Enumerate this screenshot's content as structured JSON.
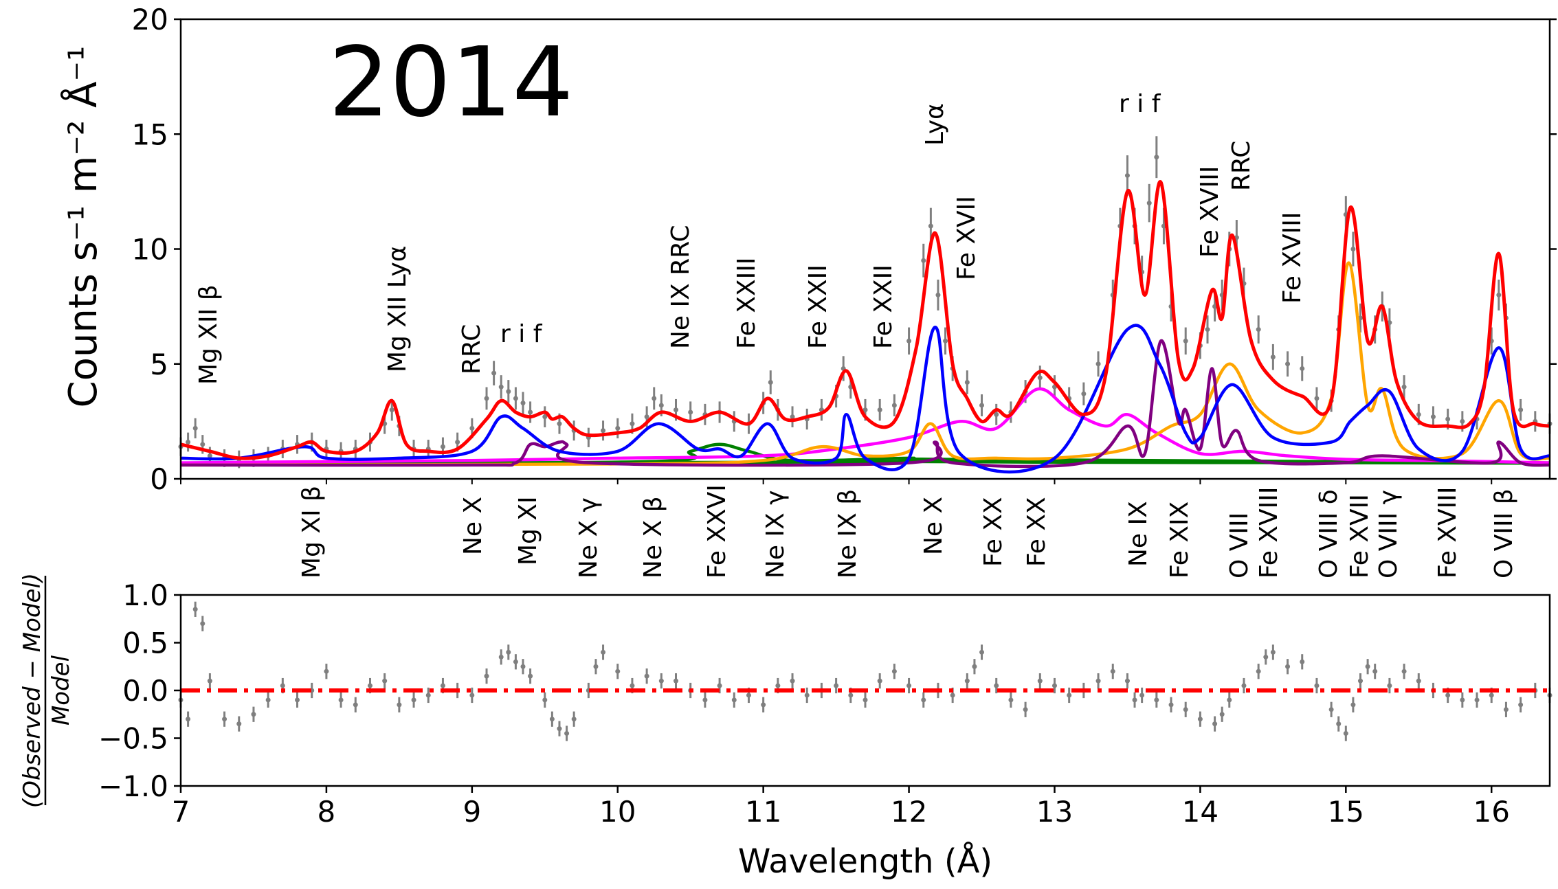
{
  "chart_data": [
    {
      "type": "line",
      "panel": "spectrum",
      "year_label": "2014",
      "ylabel": "Counts s⁻¹ m⁻² Å⁻¹",
      "xlim": [
        7.0,
        16.4
      ],
      "ylim": [
        0,
        20
      ],
      "yticks": [
        "0",
        "5",
        "10",
        "15",
        "20"
      ],
      "top_labels": [
        "Mg XII β",
        "Mg XII Lyα",
        "RRC",
        "r i f",
        "Ne IX RRC",
        "Fe XXIII",
        "Fe XXII",
        "Fe XXII",
        "Lyα",
        "Fe XVII",
        "r i f",
        "Fe XVIII",
        "RRC",
        "Fe XVIII"
      ],
      "bottom_labels": [
        "Mg XI β",
        "Ne X",
        "Mg XI",
        "Ne X γ",
        "Ne X β",
        "Fe XXVI",
        "Ne IX γ",
        "Ne IX β",
        "Ne X",
        "Fe XX",
        "Fe XX",
        "Ne IX",
        "Fe XIX",
        "O VIII",
        "Fe XVIII",
        "O VIII δ",
        "Fe XVII",
        "O VIII γ",
        "Fe XVIII",
        "O VIII β"
      ],
      "colors": {
        "data": "#7f7f7f",
        "total": "#ff0000",
        "blue": "#0000ff",
        "magenta": "#ff00ff",
        "orange": "#ffa500",
        "purple": "#800080",
        "green": "#008000"
      },
      "continuum": {
        "x": [
          7.0,
          9.0,
          11.0,
          12.0,
          13.0,
          15.0,
          16.4
        ],
        "y": [
          0.65,
          0.7,
          0.72,
          0.75,
          0.72,
          0.7,
          0.68
        ]
      },
      "green_component": {
        "x": [
          7.0,
          10.2,
          10.5,
          10.7,
          10.9,
          11.2,
          12.0,
          12.3,
          16.4
        ],
        "y": [
          0.65,
          0.75,
          1.2,
          1.5,
          1.2,
          0.8,
          0.9,
          0.85,
          0.7
        ]
      },
      "magenta_component": {
        "x": [
          7.0,
          8.0,
          9.0,
          9.5,
          10.0,
          11.0,
          11.5,
          12.0,
          12.35,
          12.6,
          12.88,
          13.1,
          13.35,
          13.5,
          13.7,
          14.0,
          14.3,
          14.6,
          15.0,
          15.5,
          16.0,
          16.4
        ],
        "y": [
          0.7,
          0.75,
          0.8,
          0.85,
          0.9,
          1.0,
          1.3,
          1.8,
          2.5,
          2.2,
          3.9,
          3.0,
          2.3,
          2.8,
          2.0,
          1.1,
          1.2,
          1.0,
          0.85,
          0.8,
          0.75,
          0.7
        ]
      },
      "orange_component": {
        "x": [
          7.0,
          10.0,
          11.0,
          11.4,
          11.7,
          12.0,
          12.15,
          12.3,
          12.6,
          13.0,
          13.5,
          13.8,
          14.0,
          14.2,
          14.4,
          14.7,
          14.9,
          15.02,
          15.15,
          15.25,
          15.4,
          15.8,
          16.05,
          16.2,
          16.4
        ],
        "y": [
          0.6,
          0.65,
          0.8,
          1.4,
          1.0,
          1.2,
          2.4,
          1.0,
          0.9,
          0.9,
          1.3,
          2.3,
          2.8,
          5.0,
          3.0,
          2.0,
          3.5,
          9.4,
          3.2,
          3.9,
          1.3,
          1.1,
          3.4,
          1.1,
          0.9
        ]
      },
      "blue_component": {
        "x": [
          7.0,
          7.4,
          7.85,
          8.0,
          8.5,
          9.0,
          9.2,
          9.35,
          9.6,
          10.0,
          10.28,
          10.55,
          10.7,
          10.85,
          11.03,
          11.2,
          11.5,
          11.57,
          11.7,
          12.0,
          12.18,
          12.35,
          13.0,
          13.5,
          13.72,
          13.9,
          14.0,
          14.22,
          14.5,
          14.9,
          15.03,
          15.15,
          15.3,
          15.5,
          15.8,
          16.05,
          16.2,
          16.4
        ],
        "y": [
          0.9,
          0.9,
          1.4,
          0.9,
          0.9,
          1.2,
          2.7,
          2.2,
          1.2,
          1.2,
          2.4,
          1.3,
          1.3,
          1.0,
          2.4,
          0.9,
          0.9,
          2.8,
          0.9,
          0.9,
          6.6,
          1.1,
          0.9,
          6.5,
          5.0,
          2.0,
          1.8,
          4.1,
          1.8,
          1.6,
          2.5,
          3.2,
          3.8,
          1.3,
          1.2,
          5.7,
          1.3,
          1.0
        ]
      },
      "purple_component": {
        "x": [
          7.0,
          9.0,
          9.3,
          9.4,
          9.5,
          9.6,
          9.65,
          9.8,
          12.0,
          12.18,
          12.3,
          13.2,
          13.5,
          13.62,
          13.73,
          13.85,
          13.9,
          14.0,
          14.08,
          14.15,
          14.25,
          14.4,
          15.0,
          15.25,
          16.0,
          16.05,
          16.2,
          16.4
        ],
        "y": [
          0.6,
          0.6,
          0.7,
          1.5,
          1.4,
          1.6,
          1.5,
          0.7,
          0.7,
          1.6,
          0.7,
          0.7,
          2.3,
          1.1,
          6.0,
          2.5,
          3.0,
          1.3,
          4.8,
          1.5,
          2.1,
          0.8,
          0.7,
          1.0,
          0.7,
          1.6,
          0.7,
          0.6
        ]
      },
      "total_model": {
        "x": [
          7.0,
          7.2,
          7.4,
          7.6,
          7.8,
          7.9,
          8.0,
          8.2,
          8.35,
          8.45,
          8.55,
          8.7,
          8.9,
          9.1,
          9.2,
          9.3,
          9.4,
          9.5,
          9.55,
          9.62,
          9.7,
          9.8,
          10.0,
          10.15,
          10.3,
          10.5,
          10.7,
          10.9,
          11.03,
          11.15,
          11.3,
          11.45,
          11.57,
          11.7,
          11.9,
          12.05,
          12.18,
          12.3,
          12.4,
          12.5,
          12.6,
          12.7,
          12.88,
          13.0,
          13.2,
          13.35,
          13.5,
          13.62,
          13.73,
          13.85,
          13.95,
          14.08,
          14.15,
          14.22,
          14.35,
          14.5,
          14.7,
          14.9,
          15.03,
          15.15,
          15.25,
          15.35,
          15.5,
          15.7,
          15.85,
          15.95,
          16.05,
          16.15,
          16.3,
          16.4
        ],
        "y": [
          1.5,
          1.2,
          0.9,
          1.0,
          1.4,
          1.6,
          1.2,
          1.2,
          2.0,
          3.4,
          1.5,
          1.2,
          1.3,
          2.6,
          3.4,
          2.9,
          2.7,
          2.9,
          2.6,
          2.7,
          2.2,
          1.9,
          2.0,
          2.2,
          2.9,
          2.5,
          2.9,
          2.4,
          3.5,
          2.6,
          2.7,
          3.1,
          4.7,
          2.7,
          2.5,
          5.7,
          10.7,
          5.0,
          3.5,
          2.5,
          3.0,
          2.8,
          4.6,
          4.2,
          2.8,
          4.5,
          12.5,
          8.0,
          12.9,
          5.2,
          4.8,
          8.2,
          7.0,
          10.6,
          6.0,
          4.3,
          3.6,
          3.4,
          11.8,
          6.0,
          7.5,
          4.2,
          2.5,
          2.3,
          2.4,
          4.0,
          9.8,
          3.0,
          2.4,
          2.3
        ]
      },
      "observed": {
        "x": [
          7.0,
          7.05,
          7.1,
          7.15,
          7.2,
          7.3,
          7.4,
          7.5,
          7.6,
          7.7,
          7.8,
          7.9,
          8.0,
          8.1,
          8.2,
          8.3,
          8.4,
          8.45,
          8.5,
          8.6,
          8.7,
          8.8,
          8.9,
          9.0,
          9.1,
          9.15,
          9.2,
          9.25,
          9.3,
          9.35,
          9.4,
          9.5,
          9.6,
          9.7,
          9.8,
          9.9,
          10.0,
          10.1,
          10.2,
          10.25,
          10.3,
          10.4,
          10.5,
          10.6,
          10.7,
          10.8,
          10.9,
          11.0,
          11.05,
          11.1,
          11.2,
          11.3,
          11.4,
          11.5,
          11.55,
          11.6,
          11.7,
          11.8,
          11.9,
          12.0,
          12.1,
          12.15,
          12.2,
          12.25,
          12.3,
          12.4,
          12.5,
          12.6,
          12.7,
          12.8,
          12.9,
          13.0,
          13.1,
          13.2,
          13.3,
          13.4,
          13.45,
          13.5,
          13.55,
          13.6,
          13.65,
          13.7,
          13.75,
          13.8,
          13.9,
          14.0,
          14.05,
          14.1,
          14.15,
          14.2,
          14.25,
          14.3,
          14.4,
          14.5,
          14.6,
          14.7,
          14.8,
          14.9,
          14.95,
          15.0,
          15.05,
          15.1,
          15.2,
          15.25,
          15.3,
          15.4,
          15.5,
          15.6,
          15.7,
          15.8,
          15.9,
          16.0,
          16.05,
          16.1,
          16.2,
          16.3,
          16.4
        ],
        "y": [
          1.4,
          1.6,
          2.2,
          1.5,
          1.0,
          0.9,
          0.85,
          0.9,
          1.0,
          1.3,
          1.5,
          1.6,
          1.3,
          1.2,
          1.3,
          1.6,
          2.4,
          3.0,
          2.3,
          1.3,
          1.3,
          1.4,
          1.6,
          2.2,
          3.5,
          4.6,
          4.0,
          3.8,
          3.5,
          3.3,
          2.9,
          2.7,
          2.4,
          2.1,
          1.8,
          2.1,
          2.2,
          2.4,
          2.7,
          3.5,
          3.2,
          3.0,
          2.9,
          2.8,
          2.9,
          2.5,
          2.4,
          3.3,
          4.2,
          3.0,
          2.7,
          2.6,
          3.0,
          3.6,
          4.8,
          4.0,
          3.0,
          3.0,
          3.2,
          6.0,
          9.5,
          11.0,
          8.0,
          6.0,
          4.8,
          4.2,
          3.2,
          2.8,
          2.9,
          3.8,
          4.4,
          4.0,
          3.5,
          3.7,
          5.0,
          8.0,
          11.0,
          13.2,
          11.0,
          9.0,
          12.0,
          14.0,
          11.0,
          7.5,
          6.0,
          5.8,
          6.5,
          7.5,
          8.0,
          10.0,
          10.5,
          8.5,
          6.5,
          5.3,
          5.0,
          4.8,
          3.5,
          3.4,
          6.5,
          11.5,
          10.0,
          7.0,
          6.5,
          7.5,
          6.8,
          4.0,
          2.8,
          2.7,
          2.6,
          2.5,
          2.6,
          6.0,
          8.0,
          7.0,
          3.0,
          2.5,
          2.4
        ]
      }
    },
    {
      "type": "line",
      "panel": "residuals",
      "ylabel_numerator": "(Observed − Model)",
      "ylabel_denominator": "Model",
      "xlabel": "Wavelength (Å)",
      "xlim": [
        7.0,
        16.4
      ],
      "ylim": [
        -1.0,
        1.0
      ],
      "yticks": [
        "−1.0",
        "−0.5",
        "0.0",
        "0.5",
        "1.0"
      ],
      "xticks": [
        "7",
        "8",
        "9",
        "10",
        "11",
        "12",
        "13",
        "14",
        "15",
        "16"
      ],
      "reference_line": {
        "y": 0.0,
        "style": "dash-dot",
        "color": "#ff0000"
      },
      "residuals": {
        "x": [
          7.0,
          7.05,
          7.1,
          7.15,
          7.2,
          7.3,
          7.4,
          7.5,
          7.6,
          7.7,
          7.8,
          7.9,
          8.0,
          8.1,
          8.2,
          8.3,
          8.4,
          8.5,
          8.6,
          8.7,
          8.8,
          8.9,
          9.0,
          9.1,
          9.2,
          9.25,
          9.3,
          9.35,
          9.4,
          9.5,
          9.55,
          9.6,
          9.65,
          9.7,
          9.8,
          9.85,
          9.9,
          10.0,
          10.1,
          10.2,
          10.3,
          10.4,
          10.5,
          10.6,
          10.7,
          10.8,
          10.9,
          11.0,
          11.1,
          11.2,
          11.3,
          11.4,
          11.5,
          11.6,
          11.7,
          11.8,
          11.9,
          12.0,
          12.1,
          12.2,
          12.3,
          12.4,
          12.45,
          12.5,
          12.6,
          12.7,
          12.8,
          12.9,
          13.0,
          13.1,
          13.2,
          13.3,
          13.4,
          13.5,
          13.55,
          13.6,
          13.7,
          13.8,
          13.9,
          14.0,
          14.1,
          14.15,
          14.2,
          14.3,
          14.4,
          14.45,
          14.5,
          14.6,
          14.7,
          14.8,
          14.9,
          14.95,
          15.0,
          15.05,
          15.1,
          15.15,
          15.2,
          15.3,
          15.4,
          15.5,
          15.6,
          15.7,
          15.8,
          15.9,
          16.0,
          16.1,
          16.2,
          16.3,
          16.4
        ],
        "y": [
          -0.1,
          -0.3,
          0.85,
          0.7,
          0.1,
          -0.3,
          -0.35,
          -0.25,
          -0.1,
          0.05,
          -0.1,
          0.0,
          0.2,
          -0.1,
          -0.15,
          0.05,
          0.1,
          -0.15,
          -0.1,
          -0.05,
          0.05,
          0.0,
          -0.05,
          0.15,
          0.35,
          0.4,
          0.3,
          0.25,
          0.15,
          -0.1,
          -0.3,
          -0.4,
          -0.45,
          -0.3,
          0.0,
          0.25,
          0.4,
          0.2,
          0.05,
          0.15,
          0.1,
          0.1,
          0.0,
          -0.1,
          0.05,
          -0.1,
          -0.05,
          -0.15,
          0.05,
          0.1,
          -0.05,
          0.0,
          0.05,
          -0.05,
          -0.1,
          0.1,
          0.2,
          0.05,
          -0.1,
          0.0,
          -0.05,
          0.1,
          0.25,
          0.4,
          0.05,
          -0.1,
          -0.2,
          0.1,
          0.05,
          -0.05,
          0.0,
          0.1,
          0.2,
          0.1,
          -0.1,
          -0.05,
          -0.1,
          -0.15,
          -0.2,
          -0.3,
          -0.35,
          -0.25,
          -0.1,
          0.05,
          0.2,
          0.35,
          0.4,
          0.25,
          0.3,
          0.05,
          -0.2,
          -0.35,
          -0.45,
          -0.15,
          0.1,
          0.25,
          0.2,
          0.05,
          0.2,
          0.1,
          0.0,
          -0.05,
          -0.1,
          -0.1,
          -0.05,
          -0.2,
          -0.15,
          0.0,
          -0.05
        ]
      }
    }
  ]
}
